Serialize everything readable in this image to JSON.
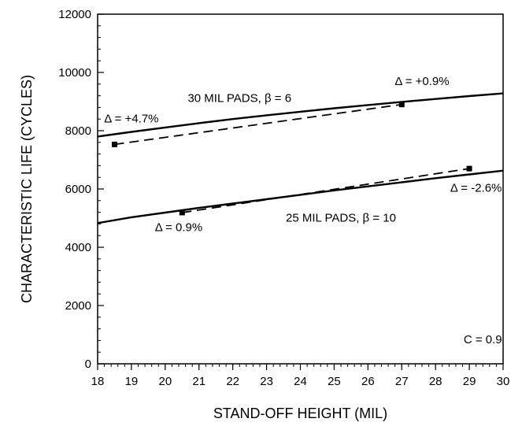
{
  "chart_data": {
    "type": "line",
    "xlabel": "STAND-OFF HEIGHT (MIL)",
    "ylabel": "CHARACTERISTIC LIFE (CYCLES)",
    "xlim": [
      18,
      30
    ],
    "ylim": [
      0,
      12000
    ],
    "x_ticks": [
      18,
      19,
      20,
      21,
      22,
      23,
      24,
      25,
      26,
      27,
      28,
      29,
      30
    ],
    "y_ticks": [
      0,
      2000,
      4000,
      6000,
      8000,
      10000,
      12000
    ],
    "x_minor_step": 0.2,
    "y_minor_step": 400,
    "grid": false,
    "series": [
      {
        "style": "solid",
        "points": [
          [
            18,
            7800
          ],
          [
            19,
            7960
          ],
          [
            20,
            8110
          ],
          [
            21,
            8260
          ],
          [
            22,
            8400
          ],
          [
            23,
            8530
          ],
          [
            24,
            8650
          ],
          [
            25,
            8770
          ],
          [
            26,
            8880
          ],
          [
            27,
            8990
          ],
          [
            28,
            9090
          ],
          [
            29,
            9190
          ],
          [
            30,
            9280
          ]
        ]
      },
      {
        "style": "dashed",
        "marker": "square",
        "points": [
          [
            18.5,
            7530
          ],
          [
            27,
            8900
          ]
        ]
      },
      {
        "style": "solid",
        "points": [
          [
            18,
            4830
          ],
          [
            19,
            5030
          ],
          [
            20,
            5190
          ],
          [
            21,
            5350
          ],
          [
            22,
            5500
          ],
          [
            23,
            5650
          ],
          [
            24,
            5800
          ],
          [
            25,
            5950
          ],
          [
            26,
            6090
          ],
          [
            27,
            6230
          ],
          [
            28,
            6370
          ],
          [
            29,
            6500
          ],
          [
            30,
            6630
          ]
        ]
      },
      {
        "style": "dashed",
        "marker": "square",
        "points": [
          [
            20.5,
            5190
          ],
          [
            29,
            6700
          ]
        ]
      }
    ],
    "annotations": [
      {
        "text": "30 MIL PADS, β = 6",
        "x": 22.2,
        "y": 8980
      },
      {
        "text": "Δ = +0.9%",
        "x": 27.6,
        "y": 9570
      },
      {
        "text": "Δ = +4.7%",
        "x": 19.0,
        "y": 8280
      },
      {
        "text": "25 MIL PADS, β = 10",
        "x": 25.2,
        "y": 4880
      },
      {
        "text": "Δ = 0.9%",
        "x": 20.4,
        "y": 4550
      },
      {
        "text": "Δ = -2.6%",
        "x": 29.2,
        "y": 5900
      },
      {
        "text": "C = 0.9",
        "x": 29.4,
        "y": 700
      }
    ]
  }
}
